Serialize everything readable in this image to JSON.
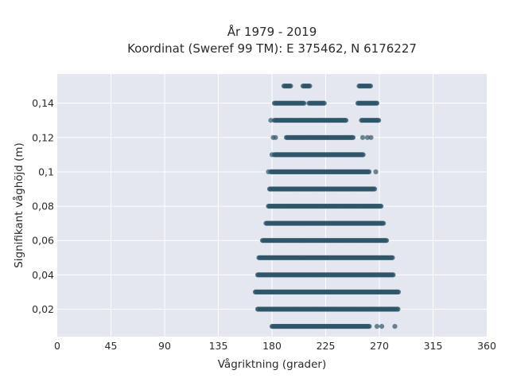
{
  "chart_data": {
    "type": "scatter",
    "title": "År 1979 - 2019",
    "subtitle": "Koordinat (Sweref 99 TM): E 375462, N 6176227",
    "xlabel": "Vågriktning (grader)",
    "ylabel": "Signifikant våghöjd (m)",
    "xlim": [
      0,
      360
    ],
    "ylim": [
      0.004,
      0.157
    ],
    "xticks": [
      0,
      45,
      90,
      135,
      180,
      225,
      270,
      315,
      360
    ],
    "xtick_labels": [
      "0",
      "45",
      "90",
      "135",
      "180",
      "225",
      "270",
      "315",
      "360"
    ],
    "yticks": [
      0.02,
      0.04,
      0.06,
      0.08,
      0.1,
      0.12,
      0.14
    ],
    "ytick_labels": [
      "0,02",
      "0,04",
      "0,06",
      "0,08",
      "0,1",
      "0,12",
      "0,14"
    ],
    "grid": true,
    "legend": "none",
    "marker_color": "#2f5669",
    "plot_background": "#e5e7f0",
    "series": [
      {
        "points_by_height": [
          {
            "y": 0.01,
            "segments": [
              [
                180,
                262
              ]
            ],
            "isolated_x": [
              268,
              272,
              283
            ]
          },
          {
            "y": 0.02,
            "segments": [
              [
                168,
                286
              ]
            ],
            "isolated_x": []
          },
          {
            "y": 0.03,
            "segments": [
              [
                166,
                286
              ]
            ],
            "isolated_x": []
          },
          {
            "y": 0.04,
            "segments": [
              [
                168,
                282
              ]
            ],
            "isolated_x": []
          },
          {
            "y": 0.05,
            "segments": [
              [
                169,
                281
              ]
            ],
            "isolated_x": []
          },
          {
            "y": 0.06,
            "segments": [
              [
                172,
                276
              ]
            ],
            "isolated_x": []
          },
          {
            "y": 0.07,
            "segments": [
              [
                175,
                274
              ]
            ],
            "isolated_x": []
          },
          {
            "y": 0.08,
            "segments": [
              [
                177,
                272
              ]
            ],
            "isolated_x": []
          },
          {
            "y": 0.09,
            "segments": [
              [
                178,
                266
              ]
            ],
            "isolated_x": []
          },
          {
            "y": 0.1,
            "segments": [
              [
                179,
                262
              ]
            ],
            "isolated_x": [
              177,
              267
            ]
          },
          {
            "y": 0.11,
            "segments": [
              [
                182,
                257
              ]
            ],
            "isolated_x": [
              180
            ]
          },
          {
            "y": 0.12,
            "segments": [
              [
                192,
                248
              ]
            ],
            "isolated_x": [
              181,
              183,
              256,
              260,
              263
            ]
          },
          {
            "y": 0.13,
            "segments": [
              [
                182,
                242
              ],
              [
                255,
                270
              ]
            ],
            "isolated_x": [
              179
            ]
          },
          {
            "y": 0.14,
            "segments": [
              [
                182,
                207
              ],
              [
                211,
                224
              ],
              [
                252,
                268
              ]
            ],
            "isolated_x": []
          },
          {
            "y": 0.15,
            "segments": [
              [
                190,
                196
              ],
              [
                206,
                212
              ],
              [
                253,
                263
              ]
            ],
            "isolated_x": []
          }
        ]
      }
    ]
  }
}
